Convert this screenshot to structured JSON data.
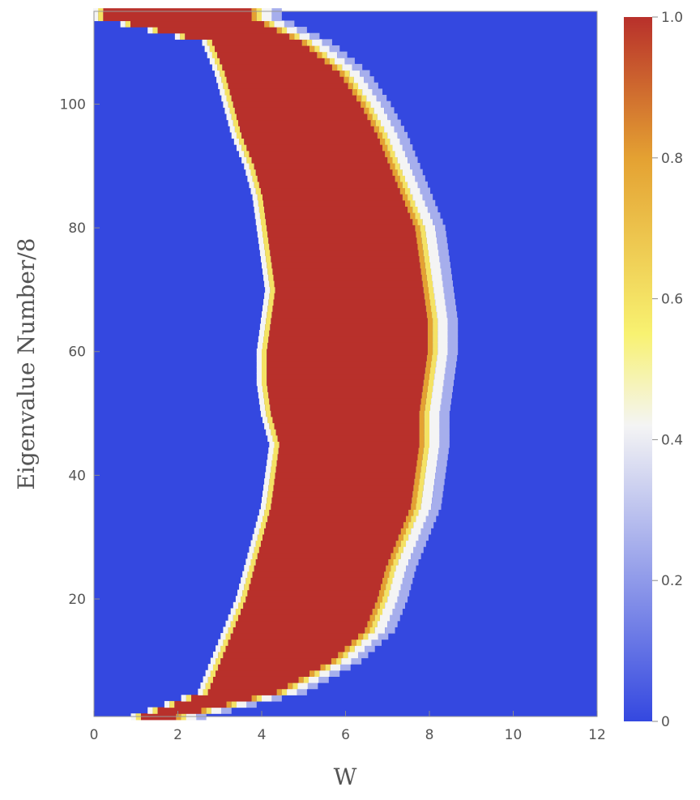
{
  "chart_data": {
    "type": "heatmap",
    "title": "",
    "xlabel": "W",
    "ylabel": "Eigenvalue Number/8",
    "xlim": [
      0,
      12
    ],
    "ylim": [
      1,
      115
    ],
    "x_ticks": [
      "0",
      "2",
      "4",
      "6",
      "8",
      "10",
      "12"
    ],
    "y_ticks": [
      "20",
      "40",
      "60",
      "80",
      "100"
    ],
    "colorbar": {
      "min": 0,
      "max": 1,
      "ticks": [
        "0",
        "0.2",
        "0.4",
        "0.6",
        "0.8",
        "1.0"
      ],
      "colormap": [
        "#3448e0",
        "#f4f4f4",
        "#f8f271",
        "#e4a132",
        "#b8302b"
      ]
    },
    "background_value": 0,
    "band_value": 1,
    "band_rows": [
      {
        "y": 1,
        "w_low": 1.0,
        "w_high": 2.2
      },
      {
        "y": 5,
        "w_low": 2.6,
        "w_high": 4.6
      },
      {
        "y": 10,
        "w_low": 2.9,
        "w_high": 5.9
      },
      {
        "y": 15,
        "w_low": 3.2,
        "w_high": 6.7
      },
      {
        "y": 20,
        "w_low": 3.5,
        "w_high": 7.0
      },
      {
        "y": 25,
        "w_low": 3.7,
        "w_high": 7.2
      },
      {
        "y": 30,
        "w_low": 3.9,
        "w_high": 7.5
      },
      {
        "y": 35,
        "w_low": 4.1,
        "w_high": 7.8
      },
      {
        "y": 40,
        "w_low": 4.2,
        "w_high": 7.9
      },
      {
        "y": 45,
        "w_low": 4.3,
        "w_high": 8.0
      },
      {
        "y": 50,
        "w_low": 4.1,
        "w_high": 8.0
      },
      {
        "y": 55,
        "w_low": 4.0,
        "w_high": 8.1
      },
      {
        "y": 60,
        "w_low": 4.0,
        "w_high": 8.2
      },
      {
        "y": 65,
        "w_low": 4.1,
        "w_high": 8.2
      },
      {
        "y": 70,
        "w_low": 4.2,
        "w_high": 8.1
      },
      {
        "y": 75,
        "w_low": 4.1,
        "w_high": 8.0
      },
      {
        "y": 80,
        "w_low": 4.0,
        "w_high": 7.9
      },
      {
        "y": 85,
        "w_low": 3.9,
        "w_high": 7.6
      },
      {
        "y": 90,
        "w_low": 3.7,
        "w_high": 7.3
      },
      {
        "y": 95,
        "w_low": 3.4,
        "w_high": 7.0
      },
      {
        "y": 100,
        "w_low": 3.2,
        "w_high": 6.6
      },
      {
        "y": 105,
        "w_low": 3.0,
        "w_high": 6.1
      },
      {
        "y": 110,
        "w_low": 2.7,
        "w_high": 5.2
      },
      {
        "y": 114,
        "w_low": 0.1,
        "w_high": 4.0
      }
    ]
  }
}
